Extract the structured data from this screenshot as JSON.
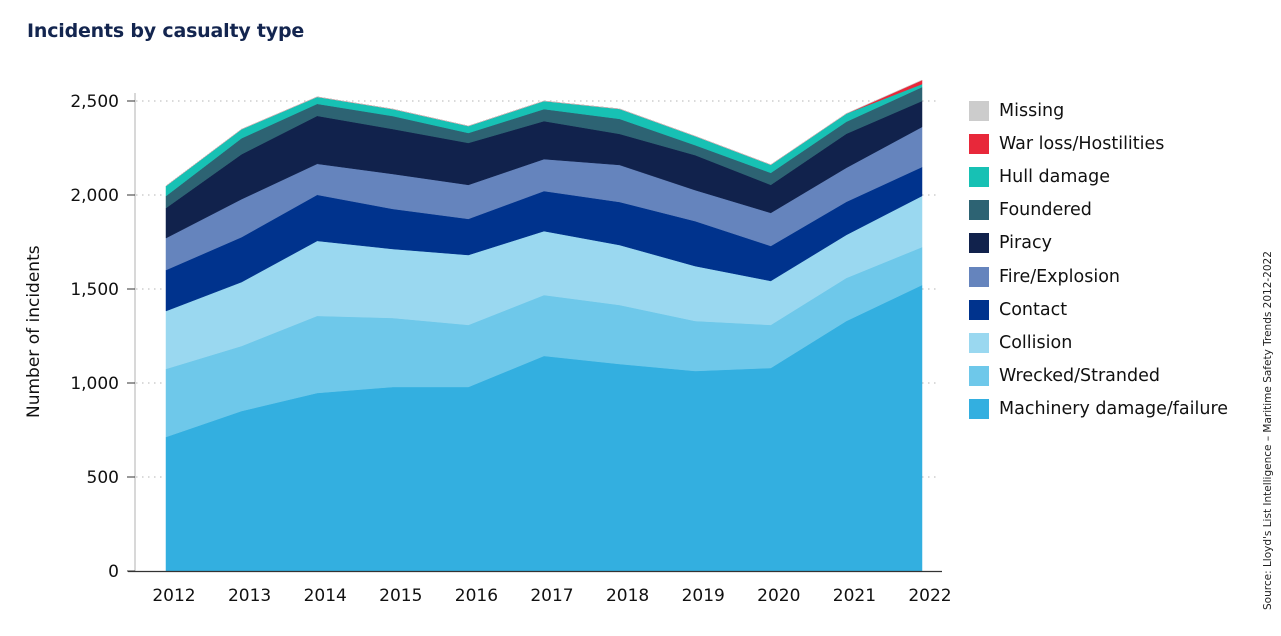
{
  "chart_data": {
    "type": "area",
    "stacked": true,
    "title": "Incidents by casualty type",
    "xlabel": "",
    "ylabel": "Number of incidents",
    "source": "Source: Lloyd's List Intelligence – Maritime Safety Trends 2012-2022",
    "ylim": [
      0,
      2600
    ],
    "yticks": [
      0,
      500,
      1000,
      1500,
      2000,
      2500
    ],
    "ytick_labels": [
      "0",
      "500",
      "1,000",
      "1,500",
      "2,000",
      "2,500"
    ],
    "grid": "horizontal dotted",
    "legend_position": "right",
    "categories": [
      "2012",
      "2013",
      "2014",
      "2015",
      "2016",
      "2017",
      "2018",
      "2019",
      "2020",
      "2021",
      "2022"
    ],
    "series": [
      {
        "name": "Machinery damage/failure",
        "color": "#33afe0",
        "values": [
          713,
          851,
          947,
          979,
          979,
          1144,
          1101,
          1064,
          1080,
          1330,
          1521
        ]
      },
      {
        "name": "Wrecked/Stranded",
        "color": "#6ec8ea",
        "values": [
          362,
          346,
          410,
          367,
          330,
          324,
          314,
          266,
          229,
          229,
          202
        ]
      },
      {
        "name": "Collision",
        "color": "#9ad8f0",
        "values": [
          308,
          340,
          399,
          367,
          372,
          340,
          319,
          292,
          234,
          229,
          272
        ]
      },
      {
        "name": "Contact",
        "color": "#00338d",
        "values": [
          218,
          239,
          245,
          213,
          192,
          213,
          229,
          239,
          186,
          176,
          154
        ]
      },
      {
        "name": "Fire/Explosion",
        "color": "#6584bd",
        "values": [
          170,
          202,
          165,
          186,
          181,
          170,
          197,
          165,
          176,
          181,
          213
        ]
      },
      {
        "name": "Piracy",
        "color": "#11224c",
        "values": [
          160,
          239,
          255,
          239,
          223,
          202,
          165,
          186,
          149,
          181,
          138
        ]
      },
      {
        "name": "Foundered",
        "color": "#2d6373",
        "values": [
          64,
          85,
          64,
          69,
          53,
          64,
          80,
          53,
          64,
          64,
          74
        ]
      },
      {
        "name": "Hull damage",
        "color": "#17c1b4",
        "values": [
          53,
          48,
          37,
          37,
          37,
          43,
          53,
          48,
          43,
          43,
          16
        ]
      },
      {
        "name": "War loss/Hostilities",
        "color": "#e8283a",
        "values": [
          0,
          0,
          0,
          0,
          0,
          0,
          0,
          0,
          0,
          0,
          21
        ]
      },
      {
        "name": "Missing",
        "color": "#cccccc",
        "values": [
          0,
          0,
          0,
          0,
          0,
          0,
          0,
          0,
          0,
          0,
          0
        ]
      }
    ],
    "legend_order": [
      "Missing",
      "War loss/Hostilities",
      "Hull damage",
      "Foundered",
      "Piracy",
      "Fire/Explosion",
      "Contact",
      "Collision",
      "Wrecked/Stranded",
      "Machinery damage/failure"
    ]
  }
}
